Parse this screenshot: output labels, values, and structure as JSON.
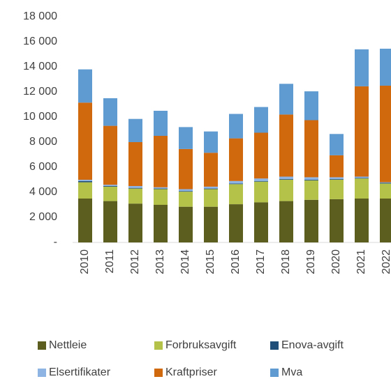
{
  "chart_data": {
    "type": "stacked-bar",
    "categories": [
      "2010",
      "2011",
      "2012",
      "2013",
      "2014",
      "2015",
      "2016",
      "2017",
      "2018",
      "2019",
      "2020",
      "2021",
      "2022"
    ],
    "series": [
      {
        "name": "Nettleie",
        "color": "#5b5e1e",
        "values": [
          3500,
          3300,
          3100,
          3000,
          2850,
          2850,
          3050,
          3200,
          3300,
          3400,
          3450,
          3500,
          3500
        ]
      },
      {
        "name": "Forbruksavgift",
        "color": "#b4c24a",
        "values": [
          1300,
          1150,
          1200,
          1250,
          1200,
          1400,
          1600,
          1650,
          1700,
          1550,
          1550,
          1600,
          1200
        ]
      },
      {
        "name": "Enova-avgift",
        "color": "#1f4e79",
        "values": [
          100,
          50,
          50,
          50,
          50,
          50,
          50,
          50,
          50,
          50,
          50,
          50,
          50
        ]
      },
      {
        "name": "Elsertifikater",
        "color": "#8db4e2",
        "values": [
          100,
          100,
          150,
          100,
          150,
          150,
          200,
          200,
          200,
          200,
          150,
          100,
          50
        ]
      },
      {
        "name": "Kraftpriser",
        "color": "#d0680e",
        "values": [
          6150,
          4700,
          3500,
          4100,
          3200,
          2700,
          3400,
          3650,
          4950,
          4550,
          1750,
          7200,
          7700
        ]
      },
      {
        "name": "Mva",
        "color": "#5f9bd0",
        "values": [
          2650,
          2200,
          1850,
          2000,
          1750,
          1700,
          1950,
          2050,
          2450,
          2300,
          1700,
          2950,
          2950
        ]
      }
    ],
    "ylim": [
      0,
      18000
    ],
    "yticks": [
      {
        "value": 0,
        "label": "-"
      },
      {
        "value": 2000,
        "label": "2 000"
      },
      {
        "value": 4000,
        "label": "4 000"
      },
      {
        "value": 6000,
        "label": "6 000"
      },
      {
        "value": 8000,
        "label": "8 000"
      },
      {
        "value": 10000,
        "label": "10 000"
      },
      {
        "value": 12000,
        "label": "12 000"
      },
      {
        "value": 14000,
        "label": "14 000"
      },
      {
        "value": 16000,
        "label": "16 000"
      },
      {
        "value": 18000,
        "label": "18 000"
      }
    ],
    "grid": false
  }
}
